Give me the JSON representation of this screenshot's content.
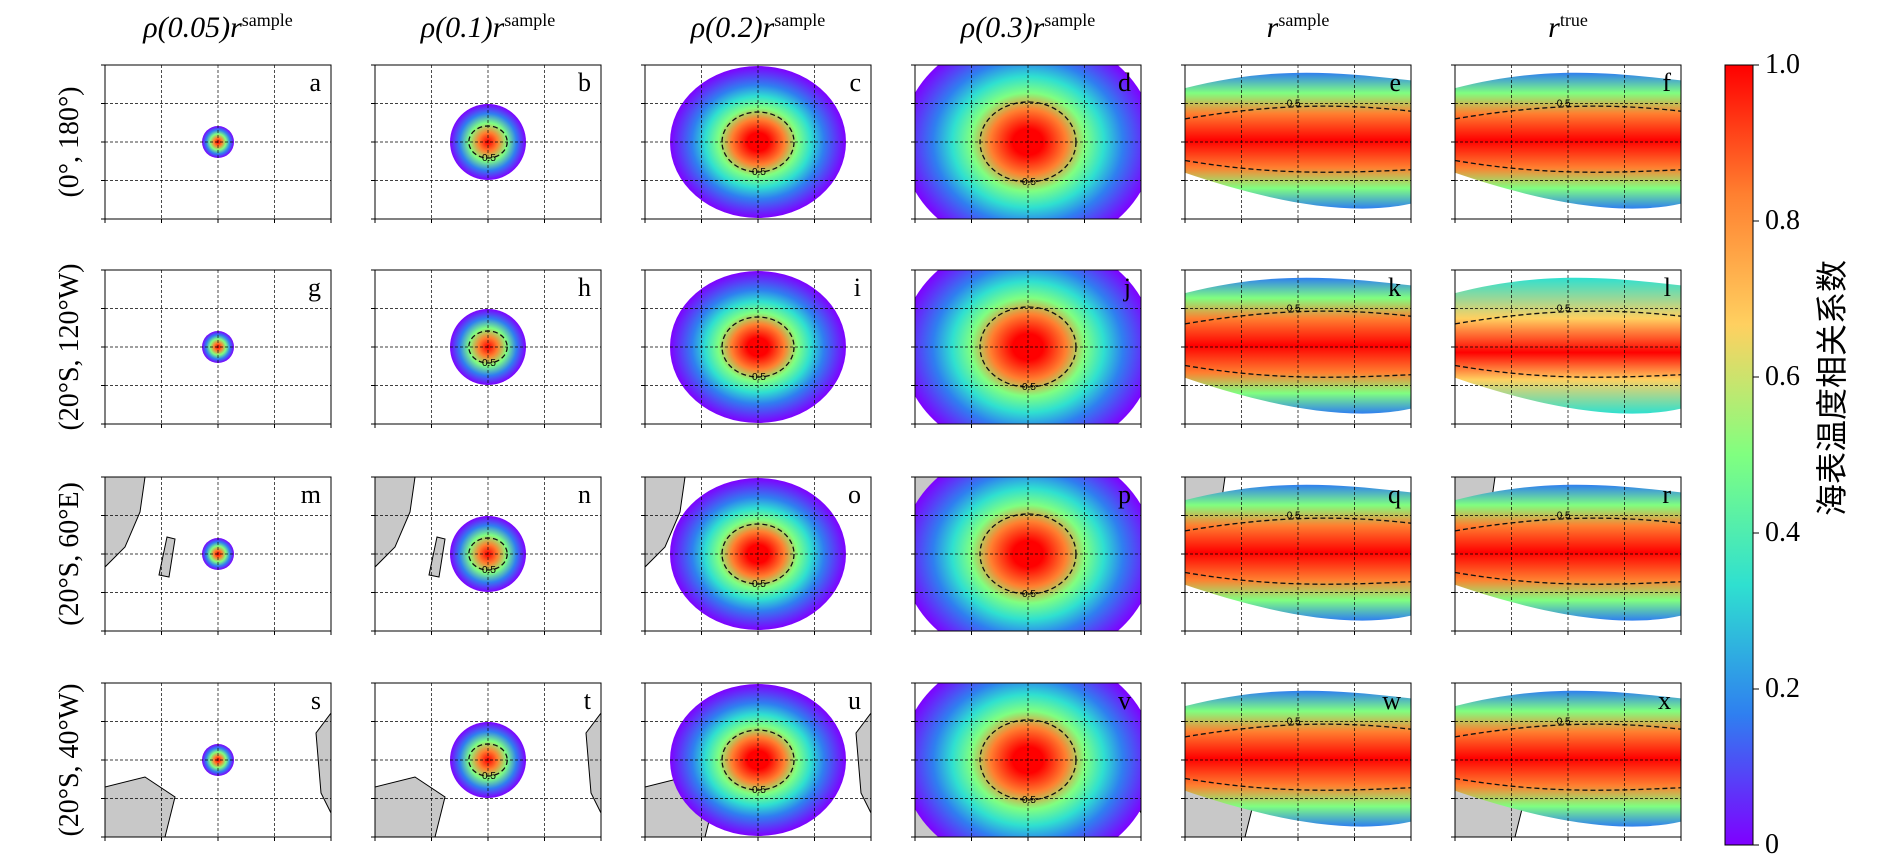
{
  "chart_data": {
    "type": "heatmap",
    "description_type": "grid of 24 correlation maps (4 rows x 6 columns)",
    "columns": [
      {
        "key": "rho005",
        "prefix": "ρ(0.05)",
        "sym": "r",
        "sup": "sample"
      },
      {
        "key": "rho01",
        "prefix": "ρ(0.1)",
        "sym": "r",
        "sup": "sample"
      },
      {
        "key": "rho02",
        "prefix": "ρ(0.2)",
        "sym": "r",
        "sup": "sample"
      },
      {
        "key": "rho03",
        "prefix": "ρ(0.3)",
        "sym": "r",
        "sup": "sample"
      },
      {
        "key": "sample",
        "prefix": "",
        "sym": "r",
        "sup": "sample"
      },
      {
        "key": "true",
        "prefix": "",
        "sym": "r",
        "sup": "true"
      }
    ],
    "rows": [
      {
        "label": "(0°, 180°)",
        "panels": [
          "a",
          "b",
          "c",
          "d",
          "e",
          "f"
        ]
      },
      {
        "label": "(20°S, 120°W)",
        "panels": [
          "g",
          "h",
          "i",
          "j",
          "k",
          "l"
        ]
      },
      {
        "label": "(20°S, 60°E)",
        "panels": [
          "m",
          "n",
          "o",
          "p",
          "q",
          "r"
        ]
      },
      {
        "label": "(20°S, 40°W)",
        "panels": [
          "s",
          "t",
          "u",
          "v",
          "w",
          "x"
        ]
      }
    ],
    "contour_label": "0.5",
    "colorbar": {
      "label": "海表温度相关系数",
      "ticks": [
        "1.0",
        "0.8",
        "0.6",
        "0.4",
        "0.2",
        "0"
      ],
      "range": [
        0,
        1
      ],
      "colormap": "rainbow",
      "colors": [
        "#7f00ff",
        "#2f7ff0",
        "#2fe0d0",
        "#80ff80",
        "#ffd060",
        "#ff8030",
        "#ff0000"
      ]
    },
    "localization_radii": [
      0.05,
      0.1,
      0.2,
      0.3
    ],
    "land_color": "#c8c8c8"
  }
}
